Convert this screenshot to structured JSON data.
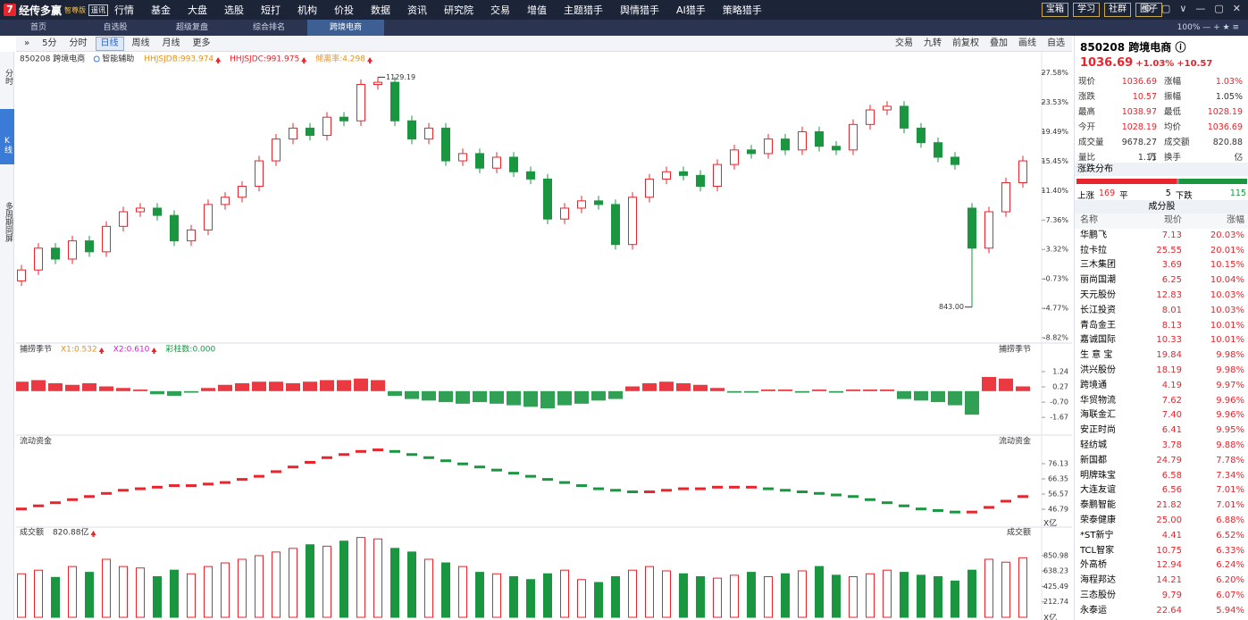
{
  "top": {
    "brand": "经传多赢",
    "edition": "智尊版",
    "tag": "遥讯",
    "menu": [
      "行情",
      "基金",
      "大盘",
      "选股",
      "短打",
      "机构",
      "价投",
      "数据",
      "资讯",
      "研究院",
      "交易",
      "增值",
      "主题猎手",
      "舆情猎手",
      "AI猎手",
      "策略猎手"
    ],
    "buttons": [
      "宝箱",
      "学习",
      "社群",
      "圈子"
    ]
  },
  "tabs": [
    "首页",
    "自选股",
    "超级复盘",
    "综合排名",
    "跨境电商"
  ],
  "zoom": "100%",
  "toolbar": {
    "left": [
      "5分",
      "分时",
      "日线",
      "周线",
      "月线",
      "更多"
    ],
    "right": [
      "交易",
      "九转",
      "前复权",
      "叠加",
      "画线",
      "自选"
    ]
  },
  "side_tabs": [
    "分时",
    "K线",
    "多周期同屏"
  ],
  "quote": {
    "code": "850208 跨境电商",
    "price": "1036.69",
    "pct": "+1.03%",
    "chg": "+10.57",
    "rows": [
      [
        "现价",
        "1036.69",
        "涨幅",
        "1.03%"
      ],
      [
        "涨跌",
        "10.57",
        "振幅",
        "1.05%"
      ],
      [
        "最高",
        "1038.97",
        "最低",
        "1028.19"
      ],
      [
        "今开",
        "1028.19",
        "均价",
        "1036.69"
      ],
      [
        "成交量",
        "9678.27万",
        "成交额",
        "820.88亿"
      ],
      [
        "量比",
        "1.11",
        "换手",
        "-"
      ]
    ]
  },
  "distribution": {
    "title": "涨跌分布",
    "up_label": "上涨",
    "up": 169,
    "flat_label": "平",
    "flat": 5,
    "down_label": "下跌",
    "down": 115,
    "up_color": "#e8242c",
    "flat_color": "#888888",
    "down_color": "#1a9641"
  },
  "constituents": {
    "title": "成分股",
    "header": [
      "名称",
      "现价",
      "涨幅"
    ],
    "rows": [
      [
        "华鹏飞",
        "7.13",
        "20.03%"
      ],
      [
        "拉卡拉",
        "25.55",
        "20.01%"
      ],
      [
        "三木集团",
        "3.69",
        "10.15%"
      ],
      [
        "丽尚国潮",
        "6.25",
        "10.04%"
      ],
      [
        "天元股份",
        "12.83",
        "10.03%"
      ],
      [
        "长江投资",
        "8.01",
        "10.03%"
      ],
      [
        "青岛金王",
        "8.13",
        "10.01%"
      ],
      [
        "嘉诚国际",
        "10.33",
        "10.01%"
      ],
      [
        "生 意 宝",
        "19.84",
        "9.98%"
      ],
      [
        "洪兴股份",
        "18.19",
        "9.98%"
      ],
      [
        "跨境通",
        "4.19",
        "9.97%"
      ],
      [
        "华贸物流",
        "7.62",
        "9.96%"
      ],
      [
        "海联金汇",
        "7.40",
        "9.96%"
      ],
      [
        "安正时尚",
        "6.41",
        "9.95%"
      ],
      [
        "轻纺城",
        "3.78",
        "9.88%"
      ],
      [
        "新国都",
        "24.79",
        "7.78%"
      ],
      [
        "明牌珠宝",
        "6.58",
        "7.34%"
      ],
      [
        "大连友谊",
        "6.56",
        "7.01%"
      ],
      [
        "泰鹏智能",
        "21.82",
        "7.01%"
      ],
      [
        "荣泰健康",
        "25.00",
        "6.88%"
      ],
      [
        "*ST新宁",
        "4.41",
        "6.52%"
      ],
      [
        "TCL智家",
        "10.75",
        "6.33%"
      ],
      [
        "外高桥",
        "12.94",
        "6.24%"
      ],
      [
        "海程邦达",
        "14.21",
        "6.20%"
      ],
      [
        "三态股份",
        "9.79",
        "6.07%"
      ],
      [
        "永泰运",
        "22.64",
        "5.94%"
      ]
    ]
  },
  "chart_data": [
    {
      "type": "candlestick",
      "title": "850208 跨境电商",
      "assist": "智能辅助",
      "indicators": [
        {
          "text": "HHJSJDB:993.974",
          "color": "#e8901c"
        },
        {
          "text": "HHJSJDC:991.975",
          "color": "#e8242c"
        },
        {
          "text": "倾离率:4.298",
          "color": "#e8901c"
        }
      ],
      "annotations": {
        "high": "1129.19",
        "low": "843.00"
      },
      "up_color": "#e8242c",
      "down_color": "#1a9641",
      "open": [
        -1.0,
        0.5,
        3.5,
        2.0,
        4.5,
        3.0,
        6.5,
        8.5,
        9.0,
        8.0,
        4.5,
        6.0,
        9.5,
        10.5,
        12.0,
        15.5,
        18.5,
        20.0,
        19.0,
        21.5,
        21.0,
        26.0,
        26.3,
        21.0,
        18.5,
        20.0,
        15.5,
        16.5,
        14.5,
        16.0,
        14.0,
        13.0,
        7.5,
        9.0,
        10.0,
        9.5,
        4.0,
        10.5,
        13.0,
        14.0,
        13.5,
        12.0,
        15.0,
        17.0,
        16.5,
        18.5,
        17.0,
        19.5,
        17.5,
        17.0,
        20.5,
        22.5,
        23.0,
        20.0,
        18.0,
        16.0,
        9.0,
        3.5,
        8.5,
        12.5
      ],
      "close": [
        0.5,
        3.5,
        2.0,
        4.5,
        3.0,
        6.5,
        8.5,
        9.0,
        8.0,
        4.5,
        6.0,
        9.5,
        10.5,
        12.0,
        15.5,
        18.5,
        20.0,
        19.0,
        21.5,
        21.0,
        26.0,
        26.3,
        21.0,
        18.5,
        20.0,
        15.5,
        16.5,
        14.5,
        16.0,
        14.0,
        13.0,
        7.5,
        9.0,
        10.0,
        9.5,
        4.0,
        10.5,
        13.0,
        14.0,
        13.5,
        12.0,
        15.0,
        17.0,
        16.5,
        18.5,
        17.0,
        19.5,
        17.5,
        17.0,
        20.5,
        22.5,
        23.0,
        20.0,
        18.0,
        16.0,
        15.0,
        3.5,
        8.5,
        12.5,
        15.5
      ],
      "high": [
        1.2,
        4.2,
        4.2,
        5.2,
        5.2,
        7.2,
        9.2,
        9.7,
        9.7,
        8.7,
        6.7,
        10.2,
        11.2,
        12.7,
        16.2,
        19.2,
        20.7,
        20.7,
        22.2,
        22.2,
        26.7,
        27.0,
        27.0,
        21.7,
        20.7,
        20.7,
        17.2,
        17.2,
        16.7,
        16.7,
        14.7,
        13.7,
        9.7,
        10.7,
        10.7,
        10.2,
        11.2,
        13.7,
        14.7,
        14.7,
        14.2,
        15.7,
        17.7,
        17.7,
        19.2,
        19.2,
        20.2,
        20.2,
        18.2,
        21.2,
        23.2,
        23.7,
        23.7,
        20.7,
        18.7,
        16.7,
        9.7,
        9.2,
        13.2,
        16.2
      ],
      "low": [
        -1.7,
        -0.2,
        1.3,
        1.3,
        2.3,
        2.3,
        5.8,
        7.8,
        7.3,
        3.8,
        3.8,
        5.3,
        8.8,
        9.8,
        11.3,
        14.8,
        17.8,
        18.3,
        18.3,
        20.3,
        20.3,
        25.3,
        20.3,
        17.8,
        17.8,
        14.8,
        14.8,
        13.8,
        13.8,
        13.3,
        12.3,
        6.8,
        6.8,
        8.3,
        8.8,
        3.3,
        3.3,
        9.8,
        12.3,
        12.8,
        11.3,
        11.3,
        14.3,
        15.8,
        15.8,
        16.3,
        16.3,
        16.8,
        16.3,
        16.3,
        19.8,
        21.8,
        19.3,
        17.3,
        15.3,
        14.3,
        -4.6,
        2.8,
        7.8,
        11.8
      ],
      "ylim": [
        -9.3,
        28.4
      ],
      "yticks": [
        {
          "value": 27.58,
          "label": "27.58%"
        },
        {
          "value": 23.53,
          "label": "23.53%"
        },
        {
          "value": 19.49,
          "label": "19.49%"
        },
        {
          "value": 15.45,
          "label": "15.45%"
        },
        {
          "value": 11.4,
          "label": "11.40%"
        },
        {
          "value": 7.36,
          "label": "7.36%"
        },
        {
          "value": 3.32,
          "label": "3.32%"
        },
        {
          "value": -0.73,
          "label": "-0.73%"
        },
        {
          "value": -4.77,
          "label": "-4.77%"
        },
        {
          "value": -8.82,
          "label": "-8.82%"
        }
      ]
    },
    {
      "type": "bar",
      "title": "捕捞季节",
      "indicators": [
        {
          "text": "X1:0.532",
          "color": "#e8901c"
        },
        {
          "text": "X2:0.610",
          "color": "#d020d0"
        },
        {
          "text": "彩柱数:0.000",
          "color": "#1a9641"
        }
      ],
      "up_color": "#e8242c",
      "down_color": "#1a9641",
      "values": [
        0.6,
        0.7,
        0.5,
        0.4,
        0.5,
        0.3,
        0.2,
        0.1,
        -0.2,
        -0.3,
        -0.1,
        0.2,
        0.4,
        0.5,
        0.6,
        0.6,
        0.5,
        0.6,
        0.7,
        0.7,
        0.8,
        0.7,
        -0.3,
        -0.5,
        -0.6,
        -0.7,
        -0.8,
        -0.7,
        -0.8,
        -0.9,
        -1.0,
        -1.1,
        -0.9,
        -0.8,
        -0.6,
        -0.5,
        0.3,
        0.5,
        0.6,
        0.5,
        0.4,
        0.2,
        -0.1,
        -0.1,
        0.1,
        0.1,
        -0.1,
        0.1,
        -0.1,
        0.1,
        0.1,
        0.1,
        -0.5,
        -0.6,
        -0.7,
        -0.9,
        -1.5,
        0.9,
        0.8,
        0.3
      ],
      "ylim": [
        -2.4,
        2.15
      ],
      "yticks": [
        1.24,
        0.27,
        {
          "value": -0.7,
          "label": "-0.70"
        },
        -1.67
      ]
    },
    {
      "type": "line",
      "title": "流动资金",
      "unit": "X亿",
      "up_color": "#e8242c",
      "down_color": "#1a9641",
      "values": [
        47,
        49,
        51,
        53,
        55,
        57,
        59,
        60,
        61,
        62,
        62,
        63,
        64,
        66,
        68,
        71,
        74,
        77,
        80,
        82,
        84,
        85,
        84,
        82,
        80,
        78,
        76,
        74,
        72,
        70,
        68,
        66,
        64,
        62,
        60,
        59,
        58,
        58,
        59,
        60,
        60,
        61,
        61,
        61,
        60,
        59,
        58,
        57,
        56,
        55,
        53,
        51,
        49,
        47,
        46,
        45,
        45,
        48,
        52,
        55
      ],
      "ylim": [
        38.2,
        88.2
      ],
      "yticks": [
        76.13,
        66.35,
        56.57,
        46.79
      ]
    },
    {
      "type": "volume",
      "title": "成交额",
      "value_label": "820.88亿",
      "unit": "X亿",
      "up_color": "#e8242c",
      "down_color": "#1a9641",
      "values": [
        600,
        650,
        550,
        700,
        620,
        800,
        700,
        680,
        560,
        650,
        600,
        700,
        750,
        800,
        850,
        900,
        950,
        1000,
        980,
        1050,
        1100,
        1080,
        950,
        900,
        800,
        750,
        700,
        620,
        600,
        560,
        520,
        600,
        650,
        520,
        480,
        560,
        650,
        700,
        640,
        600,
        560,
        540,
        580,
        620,
        560,
        600,
        640,
        700,
        580,
        560,
        600,
        650,
        620,
        580,
        560,
        500,
        650,
        800,
        760,
        820.88
      ],
      "ylim": [
        0,
        1120
      ],
      "yticks": [
        850.98,
        638.23,
        425.49,
        212.74
      ]
    }
  ]
}
